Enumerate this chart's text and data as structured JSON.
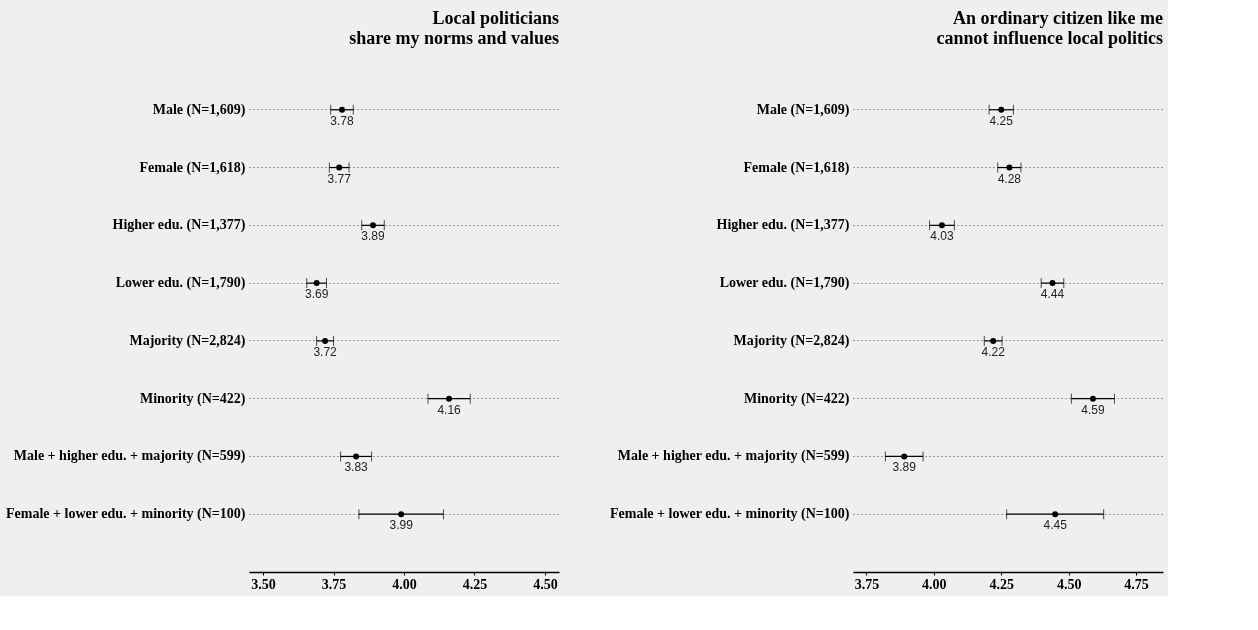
{
  "chart_data": [
    {
      "type": "scatter",
      "orientation": "horizontal",
      "title": "Local politicians\nshare my norms and values",
      "categories": [
        "Male (N=1,609)",
        "Female (N=1,618)",
        "Higher edu. (N=1,377)",
        "Lower edu. (N=1,790)",
        "Majority (N=2,824)",
        "Minority (N=422)",
        "Male + higher edu. + majority (N=599)",
        "Female + lower edu. + minority (N=100)"
      ],
      "values": [
        3.78,
        3.77,
        3.89,
        3.69,
        3.72,
        4.16,
        3.83,
        3.99
      ],
      "errors": [
        0.04,
        0.035,
        0.04,
        0.035,
        0.03,
        0.075,
        0.055,
        0.15
      ],
      "color": "#000000",
      "marker": "circle",
      "data_labels": true,
      "grid": "y",
      "xlim": [
        3.45,
        4.55
      ],
      "xticks": [
        {
          "value": 3.5,
          "label": "3.50"
        },
        {
          "value": 3.75,
          "label": "3.75"
        },
        {
          "value": 4.0,
          "label": "4.00"
        },
        {
          "value": 4.25,
          "label": "4.25"
        },
        {
          "value": 4.5,
          "label": "4.50"
        }
      ]
    },
    {
      "type": "scatter",
      "orientation": "horizontal",
      "title": "An ordinary citizen like me\ncannot influence local politics",
      "categories": [
        "Male (N=1,609)",
        "Female (N=1,618)",
        "Higher edu. (N=1,377)",
        "Lower edu. (N=1,790)",
        "Majority (N=2,824)",
        "Minority (N=422)",
        "Male + higher edu. + majority (N=599)",
        "Female + lower edu. + minority (N=100)"
      ],
      "values": [
        4.25,
        4.28,
        4.03,
        4.44,
        4.22,
        4.59,
        3.89,
        4.45
      ],
      "errors": [
        0.045,
        0.043,
        0.046,
        0.042,
        0.033,
        0.08,
        0.07,
        0.18
      ],
      "color": "#000000",
      "marker": "circle",
      "data_labels": true,
      "grid": "y",
      "xlim": [
        3.7,
        4.85
      ],
      "xticks": [
        {
          "value": 3.75,
          "label": "3.75"
        },
        {
          "value": 4.0,
          "label": "4.00"
        },
        {
          "value": 4.25,
          "label": "4.25"
        },
        {
          "value": 4.5,
          "label": "4.50"
        },
        {
          "value": 4.75,
          "label": "4.75"
        }
      ]
    }
  ]
}
